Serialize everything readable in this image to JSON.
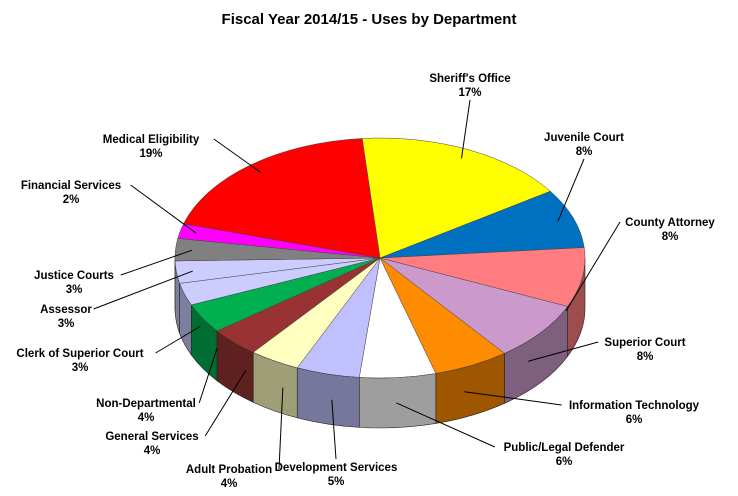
{
  "chart_data": {
    "type": "pie",
    "title": "Fiscal Year 2014/15 - Uses by Department",
    "slices": [
      {
        "name": "Sheriff's Office",
        "value": 17,
        "label": "17%",
        "color": "#ffff00"
      },
      {
        "name": "Juvenile Court",
        "value": 8,
        "label": "8%",
        "color": "#0070c0"
      },
      {
        "name": "County Attorney",
        "value": 8,
        "label": "8%",
        "color": "#ff7c80"
      },
      {
        "name": "Superior Court",
        "value": 8,
        "label": "8%",
        "color": "#cc99cc"
      },
      {
        "name": "Information Technology",
        "value": 6,
        "label": "6%",
        "color": "#ff8c00"
      },
      {
        "name": "Public/Legal Defender",
        "value": 6,
        "label": "6%",
        "color": "#ffffff"
      },
      {
        "name": "Development Services",
        "value": 5,
        "label": "5%",
        "color": "#c0c0ff"
      },
      {
        "name": "Adult Probation",
        "value": 4,
        "label": "4%",
        "color": "#ffffc0"
      },
      {
        "name": "General Services",
        "value": 4,
        "label": "4%",
        "color": "#993333"
      },
      {
        "name": "Non-Departmental",
        "value": 4,
        "label": "4%",
        "color": "#00b050"
      },
      {
        "name": "Clerk of Superior Court",
        "value": 3,
        "label": "3%",
        "color": "#ccccff"
      },
      {
        "name": "Assessor",
        "value": 3,
        "label": "3%",
        "color": "#ccccff"
      },
      {
        "name": "Justice Courts",
        "value": 3,
        "label": "3%",
        "color": "#808080"
      },
      {
        "name": "Financial Services",
        "value": 2,
        "label": "2%",
        "color": "#ff00ff"
      },
      {
        "name": "Medical Eligibility",
        "value": 19,
        "label": "19%",
        "color": "#ff0000"
      }
    ]
  }
}
